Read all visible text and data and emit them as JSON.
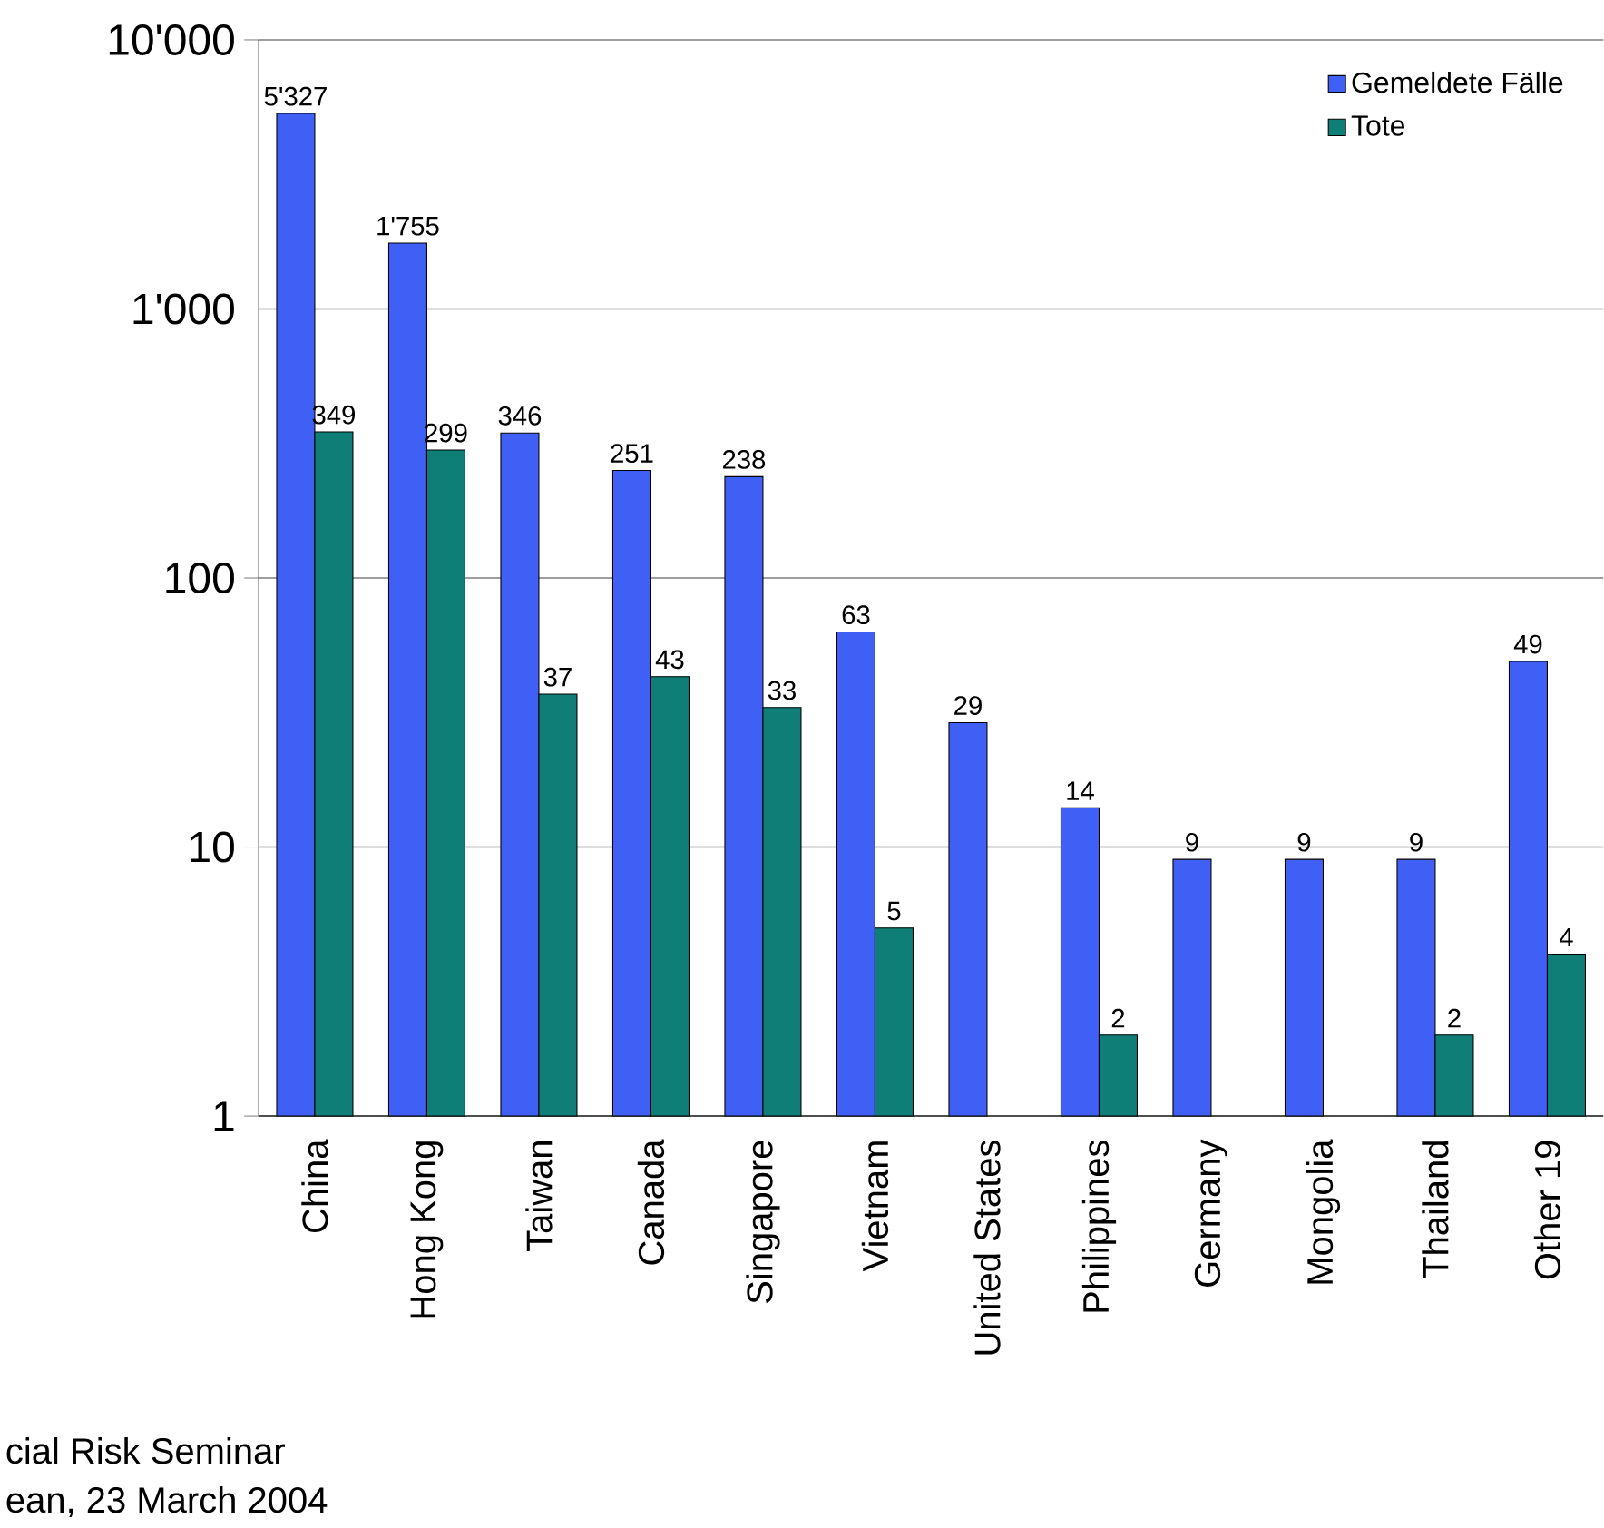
{
  "chart_data": {
    "type": "bar",
    "categories": [
      "China",
      "Hong Kong",
      "Taiwan",
      "Canada",
      "Singapore",
      "Vietnam",
      "United States",
      "Philippines",
      "Germany",
      "Mongolia",
      "Thailand",
      "Other 19"
    ],
    "series": [
      {
        "name": "Gemeldete Fälle",
        "color": "#3f5ff5",
        "values": [
          5327,
          1755,
          346,
          251,
          238,
          63,
          29,
          14,
          9,
          9,
          9,
          49
        ],
        "value_labels": [
          "5'327",
          "1'755",
          "346",
          "251",
          "238",
          "63",
          "29",
          "14",
          "9",
          "9",
          "9",
          "49"
        ]
      },
      {
        "name": "Tote",
        "color": "#0e7e76",
        "values": [
          349,
          299,
          37,
          43,
          33,
          5,
          null,
          2,
          null,
          null,
          2,
          4
        ],
        "value_labels": [
          "349",
          "299",
          "37",
          "43",
          "33",
          "5",
          null,
          "2",
          null,
          null,
          "2",
          "4"
        ]
      }
    ],
    "log": "y",
    "ylim": [
      1,
      10000
    ],
    "yticks": [
      1,
      10,
      100,
      {
        "value": 1000,
        "label": "1'000"
      },
      {
        "value": 10000,
        "label": "10'000"
      }
    ],
    "grid": "y",
    "legend": "top right",
    "annotations": [
      "cial Risk Seminar",
      "ean, 23 March 2004"
    ]
  }
}
